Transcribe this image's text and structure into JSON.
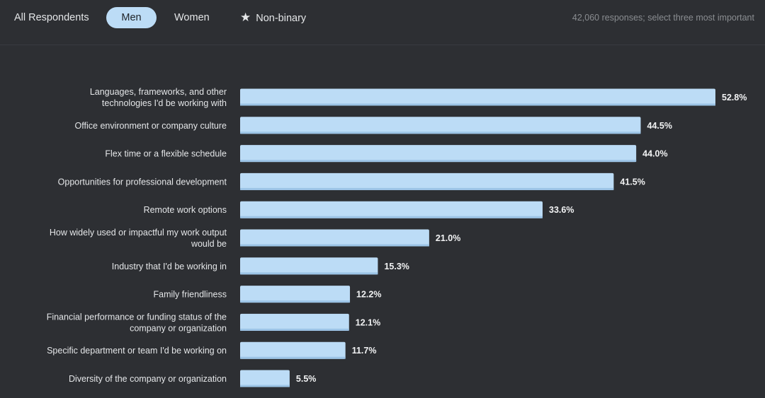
{
  "tabs": [
    {
      "label": "All Respondents",
      "active": false,
      "icon": null
    },
    {
      "label": "Men",
      "active": true,
      "icon": null
    },
    {
      "label": "Women",
      "active": false,
      "icon": null
    },
    {
      "label": "Non-binary",
      "active": false,
      "icon": "star-icon"
    }
  ],
  "icons": {
    "star": "★"
  },
  "responses_note": "42,060 responses; select three most important",
  "colors": {
    "background": "#2d2f33",
    "bar": "#bcdcf6",
    "bar_shade": "#9cc4e6",
    "active_tab": "#bcdcf6",
    "text": "#e4e6e8",
    "muted_text": "#8a8d91"
  },
  "chart_data": {
    "type": "bar",
    "orientation": "horizontal",
    "categories": [
      [
        "Languages, frameworks, and other",
        "technologies I'd be working with"
      ],
      [
        "Office environment or company culture"
      ],
      [
        "Flex time or a flexible schedule"
      ],
      [
        "Opportunities for professional development"
      ],
      [
        "Remote work options"
      ],
      [
        "How widely used or impactful my work output",
        "would be"
      ],
      [
        "Industry that I'd be working in"
      ],
      [
        "Family friendliness"
      ],
      [
        "Financial performance or funding status of the",
        "company or organization"
      ],
      [
        "Specific department or team I'd be working on"
      ],
      [
        "Diversity of the company or organization"
      ]
    ],
    "values": [
      52.8,
      44.5,
      44.0,
      41.5,
      33.6,
      21.0,
      15.3,
      12.2,
      12.1,
      11.7,
      5.5
    ],
    "value_labels": [
      "52.8%",
      "44.5%",
      "44.0%",
      "41.5%",
      "33.6%",
      "21.0%",
      "15.3%",
      "12.2%",
      "12.1%",
      "11.7%",
      "5.5%"
    ],
    "unit": "%",
    "grid": false,
    "legend": "none"
  }
}
